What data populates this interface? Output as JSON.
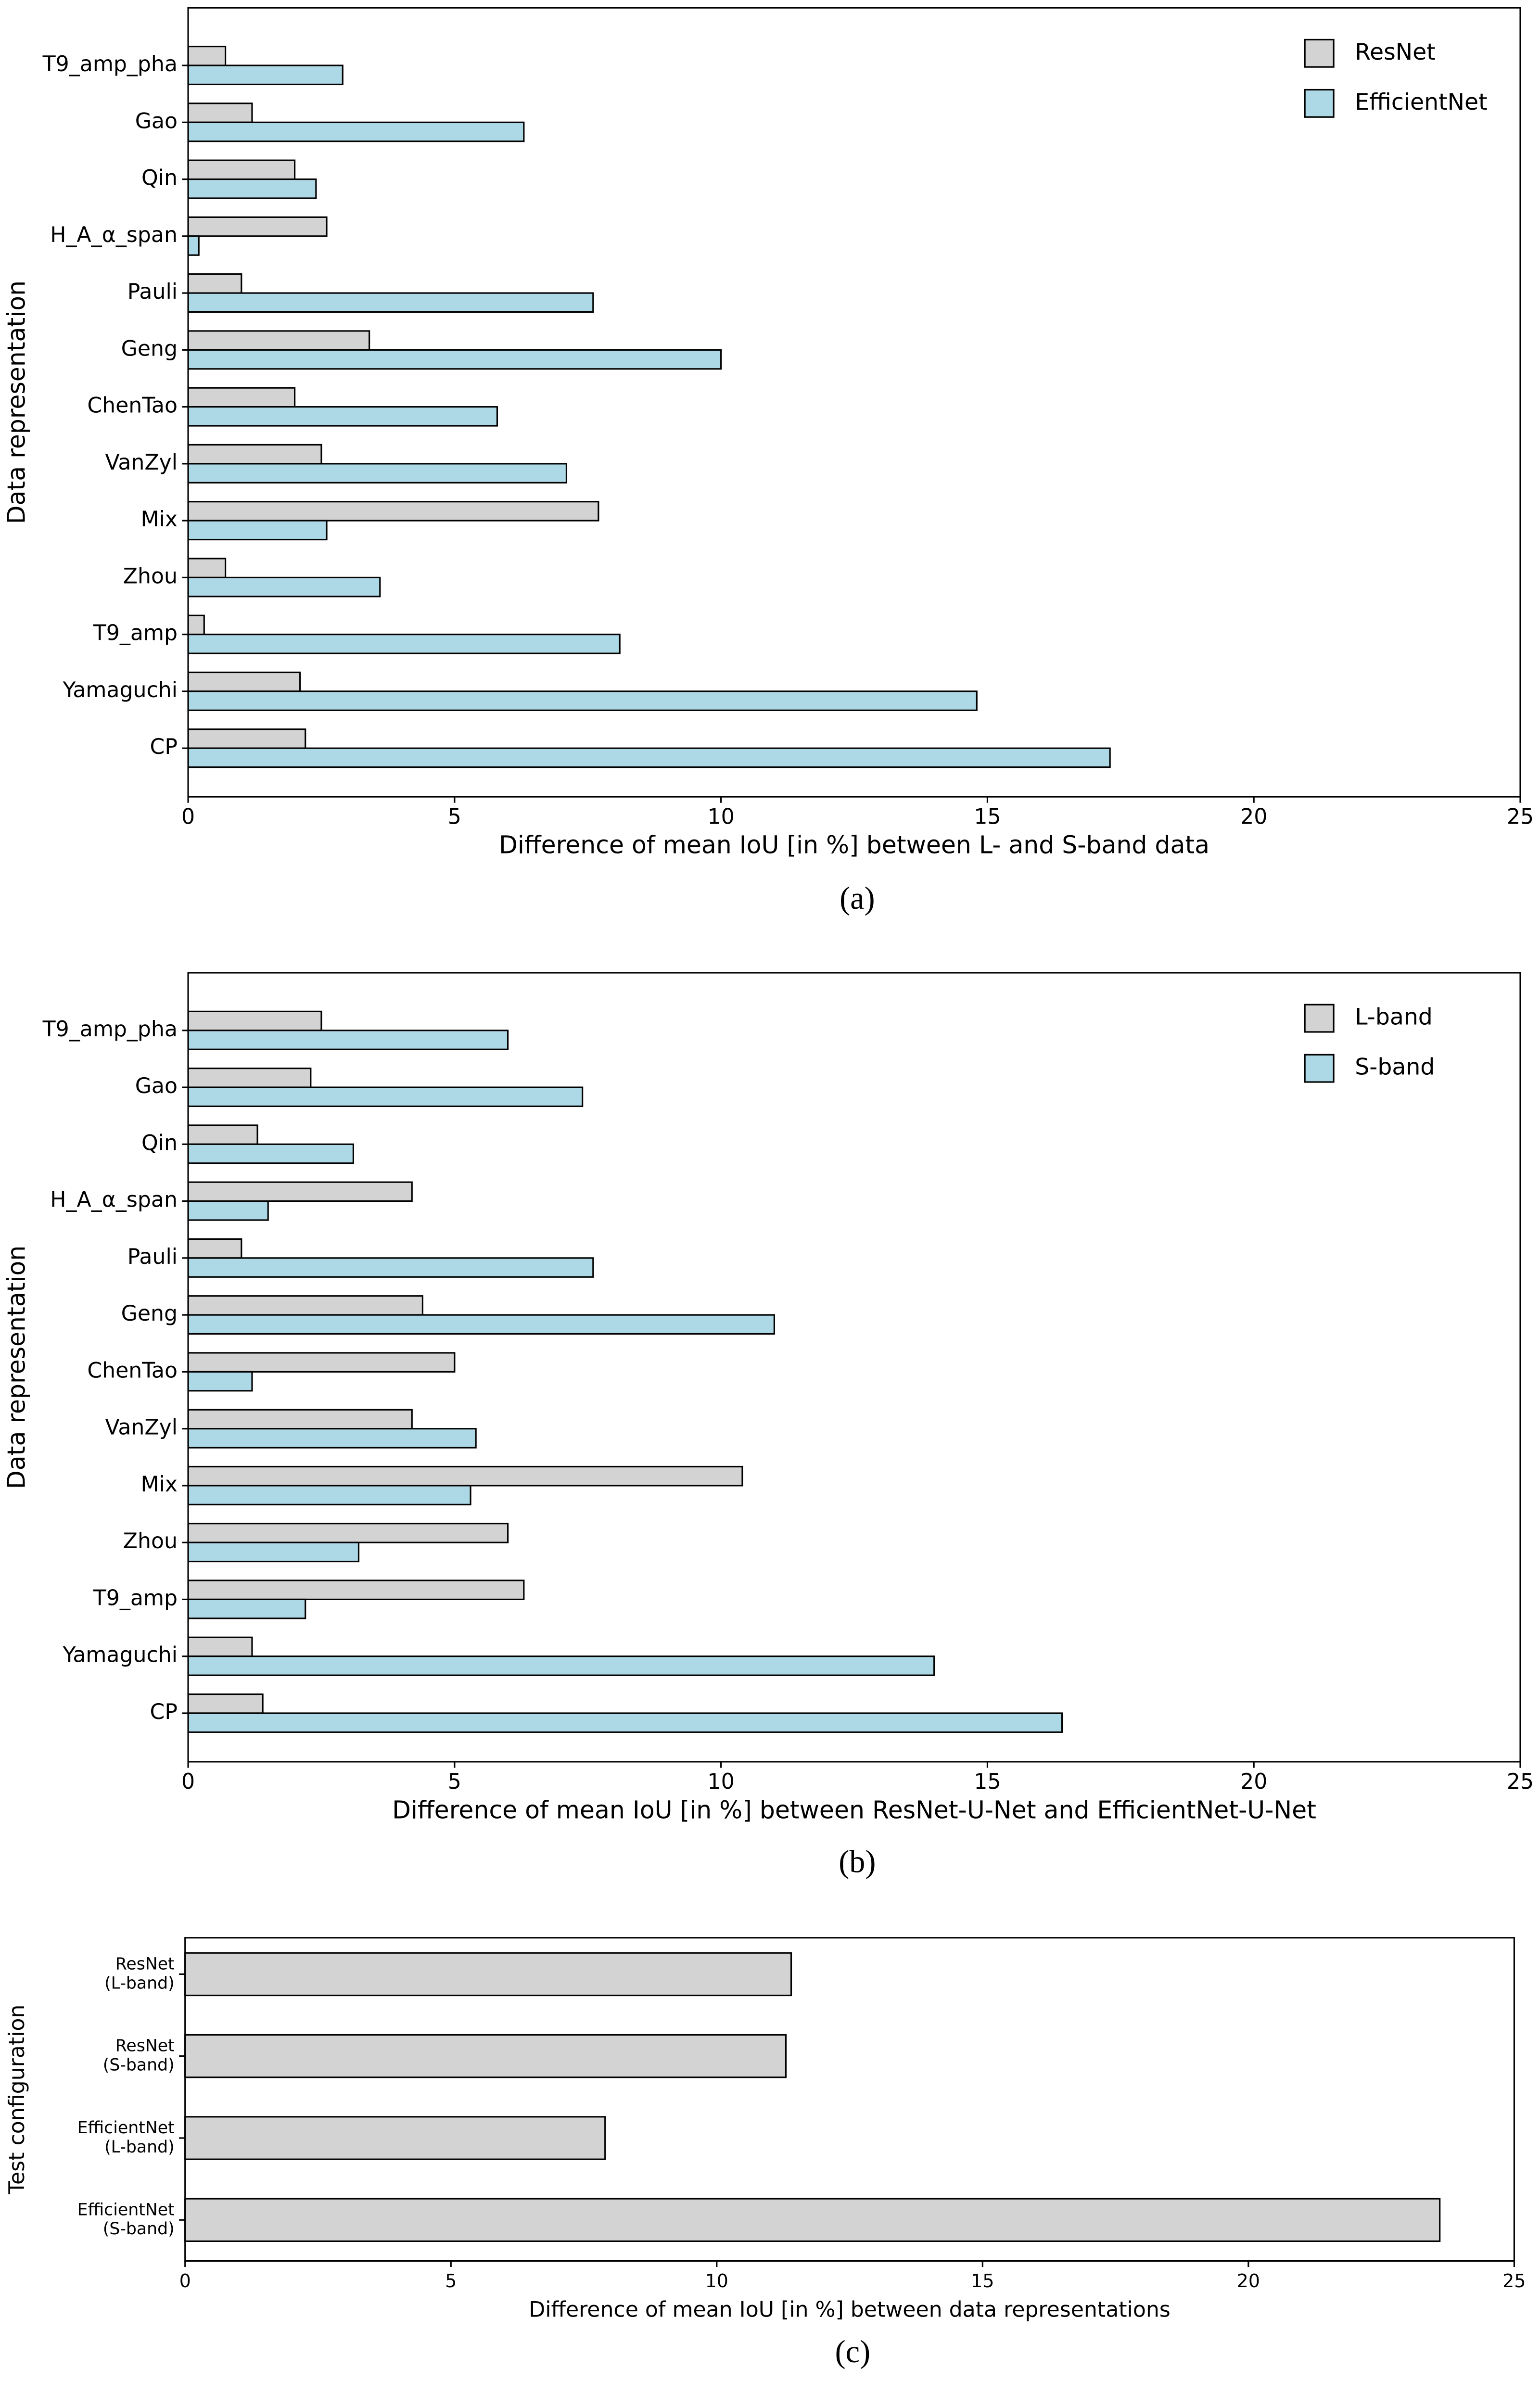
{
  "chart_data": [
    {
      "type": "barh",
      "caption": "(a)",
      "xlabel": "Difference of mean IoU [in %] between L- and S-band data",
      "ylabel": "Data representation",
      "categories": [
        "T9_amp_pha",
        "Gao",
        "Qin",
        "H_A_α_span",
        "Pauli",
        "Geng",
        "ChenTao",
        "VanZyl",
        "Mix",
        "Zhou",
        "T9_amp",
        "Yamaguchi",
        "CP"
      ],
      "label_colors": [
        "#666666",
        "#17becf",
        "#17becf",
        "#17becf",
        "#bcbd22",
        "#17becf",
        "#17becf",
        "#bcbd22",
        "#17becf",
        "#e377c2",
        "#666666",
        "#bcbd22",
        "#bcbd22"
      ],
      "series": [
        {
          "name": "ResNet",
          "color": "#d3d3d3",
          "values": [
            0.7,
            1.2,
            2.0,
            2.6,
            1.0,
            3.4,
            2.0,
            2.5,
            7.7,
            0.7,
            0.3,
            2.1,
            2.2
          ]
        },
        {
          "name": "EfficientNet",
          "color": "#add8e6",
          "values": [
            2.9,
            6.3,
            2.4,
            0.2,
            7.6,
            10.0,
            5.8,
            7.1,
            2.6,
            3.6,
            8.1,
            14.8,
            17.3
          ]
        }
      ],
      "xlim": [
        0,
        25
      ],
      "xticks": [
        0,
        5,
        10,
        15,
        20,
        25
      ],
      "legend": "upper right"
    },
    {
      "type": "barh",
      "caption": "(b)",
      "xlabel": "Difference of mean IoU [in %] between ResNet-U-Net and EfficientNet-U-Net",
      "ylabel": "Data representation",
      "categories": [
        "T9_amp_pha",
        "Gao",
        "Qin",
        "H_A_α_span",
        "Pauli",
        "Geng",
        "ChenTao",
        "VanZyl",
        "Mix",
        "Zhou",
        "T9_amp",
        "Yamaguchi",
        "CP"
      ],
      "label_colors": [
        "#666666",
        "#17becf",
        "#17becf",
        "#17becf",
        "#bcbd22",
        "#17becf",
        "#17becf",
        "#bcbd22",
        "#17becf",
        "#e377c2",
        "#666666",
        "#bcbd22",
        "#bcbd22"
      ],
      "series": [
        {
          "name": "L-band",
          "color": "#d3d3d3",
          "values": [
            2.5,
            2.3,
            1.3,
            4.2,
            1.0,
            4.4,
            5.0,
            4.2,
            10.4,
            6.0,
            6.3,
            1.2,
            1.4
          ]
        },
        {
          "name": "S-band",
          "color": "#add8e6",
          "values": [
            6.0,
            7.4,
            3.1,
            1.5,
            7.6,
            11.0,
            1.2,
            5.4,
            5.3,
            3.2,
            2.2,
            14.0,
            16.4
          ]
        }
      ],
      "xlim": [
        0,
        25
      ],
      "xticks": [
        0,
        5,
        10,
        15,
        20,
        25
      ],
      "legend": "upper right"
    },
    {
      "type": "barh",
      "caption": "(c)",
      "xlabel": "Difference of mean IoU [in %] between data representations",
      "ylabel": "Test configuration",
      "categories": [
        "ResNet\n(L-band)",
        "ResNet\n(S-band)",
        "EfficientNet\n(L-band)",
        "EfficientNet\n(S-band)"
      ],
      "series": [
        {
          "color": "#d3d3d3",
          "values": [
            11.4,
            11.3,
            7.9,
            23.6
          ]
        }
      ],
      "xlim": [
        0,
        25
      ],
      "xticks": [
        0,
        5,
        10,
        15,
        20,
        25
      ]
    }
  ]
}
